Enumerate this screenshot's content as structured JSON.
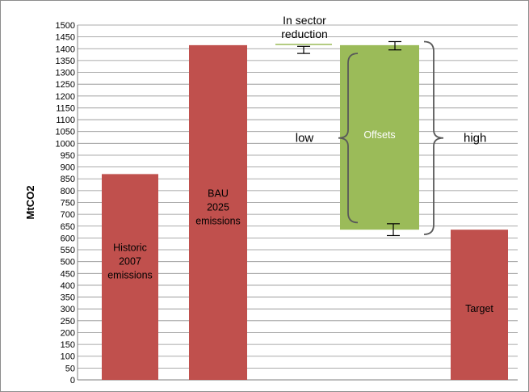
{
  "chart_data": {
    "type": "bar",
    "ylabel": "MtCO2",
    "ylim": [
      0,
      1500
    ],
    "ytick_step": 50,
    "grid": true,
    "categories": [
      "Historic 2007 emissions",
      "BAU 2025 emissions",
      "In sector reduction",
      "Offsets",
      "Target"
    ],
    "bars": [
      {
        "label_lines": [
          "Historic",
          "2007",
          "emissions"
        ],
        "bottom": 0,
        "top": 870,
        "color": "#c0504d",
        "label_y": 500
      },
      {
        "label_lines": [
          "BAU",
          "2025",
          "emissions"
        ],
        "bottom": 0,
        "top": 1415,
        "color": "#c0504d",
        "label_y": 730
      },
      {
        "label_lines": [
          "Offsets"
        ],
        "bottom": 635,
        "top": 1415,
        "color": "#9bbb59",
        "label_y": 1035
      },
      {
        "label_lines": [
          "Target"
        ],
        "bottom": 0,
        "top": 635,
        "color": "#c0504d",
        "label_y": 300
      }
    ],
    "error_bars": [
      {
        "series": "In sector reduction",
        "low": 1380,
        "high": 1410
      },
      {
        "series": "Offsets top",
        "low": 1395,
        "high": 1430
      },
      {
        "series": "Offsets bottom",
        "low": 610,
        "high": 660
      }
    ],
    "annotations": {
      "in_sector_lines": [
        "In sector",
        "reduction"
      ],
      "low": "low",
      "high": "high"
    },
    "brackets": [
      {
        "name": "low",
        "bottom": 665,
        "top": 1380
      },
      {
        "name": "high",
        "bottom": 615,
        "top": 1430
      }
    ]
  }
}
